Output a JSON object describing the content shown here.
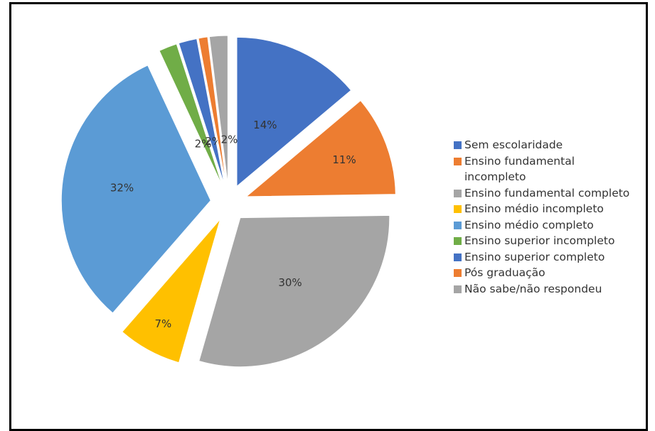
{
  "chart_data": {
    "type": "pie",
    "title": "",
    "exploded": true,
    "slices": [
      {
        "label": "Sem escolaridade",
        "value": 14,
        "display": "14%",
        "color": "#4472c4"
      },
      {
        "label": "Ensino fundamental\nincompleto",
        "value": 11,
        "display": "11%",
        "color": "#ed7d31"
      },
      {
        "label": "Ensino fundamental completo",
        "value": 30,
        "display": "30%",
        "color": "#a5a5a5"
      },
      {
        "label": "Ensino médio incompleto",
        "value": 7,
        "display": "7%",
        "color": "#ffc000"
      },
      {
        "label": "Ensino médio completo",
        "value": 32,
        "display": "32%",
        "color": "#5b9bd5"
      },
      {
        "label": "Ensino superior incompleto",
        "value": 2,
        "display": "2%",
        "color": "#70ad47"
      },
      {
        "label": "Ensino superior completo",
        "value": 2,
        "display": "2%",
        "color": "#4472c4"
      },
      {
        "label": "Pós graduação",
        "value": 1,
        "display": "1%",
        "color": "#ed7d31"
      },
      {
        "label": "Não sabe/não respondeu",
        "value": 2,
        "display": "2%",
        "color": "#a5a5a5"
      }
    ],
    "legend_position": "right"
  }
}
